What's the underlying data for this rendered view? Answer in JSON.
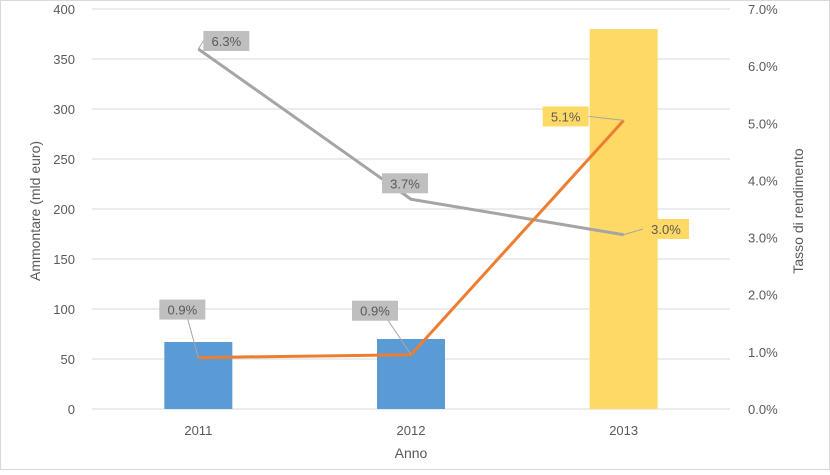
{
  "chart_data": {
    "type": "bar",
    "categories": [
      "2011",
      "2012",
      "2013"
    ],
    "xlabel": "Anno",
    "ylabel": "Ammontare (mld euro)",
    "y2label": "Tasso di rendimento",
    "ylim": [
      0,
      400
    ],
    "yticks": [
      0,
      50,
      100,
      150,
      200,
      250,
      300,
      350,
      400
    ],
    "y2lim": [
      0,
      0.07
    ],
    "y2ticks": [
      "0.0%",
      "1.0%",
      "2.0%",
      "3.0%",
      "4.0%",
      "5.0%",
      "6.0%",
      "7.0%"
    ],
    "grid": true,
    "bars": {
      "values": [
        67,
        70,
        380
      ],
      "colors": [
        "#5b9bd5",
        "#5b9bd5",
        "#ffd966"
      ]
    },
    "lines": [
      {
        "values": [
          0.063,
          0.0367,
          0.0305
        ],
        "labels": [
          "6.3%",
          "3.7%",
          "3.0%"
        ],
        "color": "#a5a5a5"
      },
      {
        "values": [
          0.009,
          0.0095,
          0.0505
        ],
        "labels": [
          "0.9%",
          "0.9%",
          "5.1%"
        ],
        "color": "#ed7d31"
      }
    ],
    "label_colors": [
      "#bfbfbf",
      "#ffd966"
    ]
  }
}
